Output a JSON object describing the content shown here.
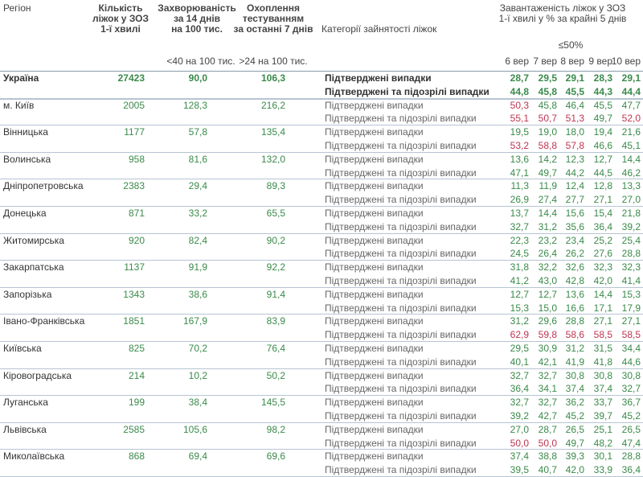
{
  "header": {
    "region": "Регіон",
    "beds": "Кількість\nліжок у ЗОЗ\n1-ї хвилі",
    "incidence": "Захворюваність\nза 14 днів\nна 100 тис.",
    "testing": "Охоплення\nтестуванням\nза останні 7 днів",
    "category": "Категорії зайнятості ліжок",
    "occupancy": "Завантаженість ліжок у ЗОЗ\n1-ї хвилі у % за крайні 5 днів",
    "incidence_threshold": "<40 на 100 тис.",
    "testing_threshold": ">24 на 100 тис.",
    "occupancy_threshold": "≤50%",
    "days": [
      "6 вер",
      "7 вер",
      "8 вер",
      "9 вер",
      "10 вер"
    ]
  },
  "rows": [
    {
      "region": "Україна",
      "beds": "27423",
      "incidence": "90,0",
      "testing": "106,3",
      "categories": [
        "Підтверджені випадки",
        "Підтверджені та підозрілі випадки"
      ],
      "occupancy": [
        [
          "28,7",
          "29,5",
          "29,1",
          "28,3",
          "29,1"
        ],
        [
          "44,8",
          "45,8",
          "45,5",
          "44,3",
          "44,4"
        ]
      ]
    },
    {
      "region": "м. Київ",
      "beds": "2005",
      "incidence": "128,3",
      "testing": "216,2",
      "categories": [
        "Підтверджені випадки",
        "Підтверджені та підозрілі випадки"
      ],
      "occupancy": [
        [
          "50,3",
          "45,8",
          "46,4",
          "45,5",
          "47,7"
        ],
        [
          "55,1",
          "50,7",
          "51,3",
          "49,7",
          "52,0"
        ]
      ]
    },
    {
      "region": "Вінницька",
      "beds": "1177",
      "incidence": "57,8",
      "testing": "135,4",
      "categories": [
        "Підтверджені випадки",
        "Підтверджені та підозрілі випадки"
      ],
      "occupancy": [
        [
          "19,5",
          "19,0",
          "18,0",
          "19,4",
          "21,6"
        ],
        [
          "53,2",
          "58,8",
          "57,8",
          "46,6",
          "45,1"
        ]
      ]
    },
    {
      "region": "Волинська",
      "beds": "958",
      "incidence": "81,6",
      "testing": "132,0",
      "categories": [
        "Підтверджені випадки",
        "Підтверджені та підозрілі випадки"
      ],
      "occupancy": [
        [
          "13,6",
          "14,2",
          "12,3",
          "12,7",
          "14,4"
        ],
        [
          "47,1",
          "49,7",
          "44,2",
          "44,5",
          "46,2"
        ]
      ]
    },
    {
      "region": "Дніпропетровська",
      "beds": "2383",
      "incidence": "29,4",
      "testing": "89,3",
      "categories": [
        "Підтверджені випадки",
        "Підтверджені та підозрілі випадки"
      ],
      "occupancy": [
        [
          "11,3",
          "11,9",
          "12,4",
          "12,8",
          "13,3"
        ],
        [
          "26,9",
          "27,4",
          "27,7",
          "27,1",
          "27,0"
        ]
      ]
    },
    {
      "region": "Донецька",
      "beds": "871",
      "incidence": "33,2",
      "testing": "65,5",
      "categories": [
        "Підтверджені випадки",
        "Підтверджені та підозрілі випадки"
      ],
      "occupancy": [
        [
          "13,7",
          "14,4",
          "15,6",
          "15,4",
          "21,8"
        ],
        [
          "32,7",
          "31,2",
          "35,6",
          "36,4",
          "39,2"
        ]
      ]
    },
    {
      "region": "Житомирська",
      "beds": "920",
      "incidence": "82,4",
      "testing": "90,2",
      "categories": [
        "Підтверджені випадки",
        "Підтверджені та підозрілі випадки"
      ],
      "occupancy": [
        [
          "22,3",
          "23,2",
          "23,4",
          "25,2",
          "25,4"
        ],
        [
          "24,5",
          "26,4",
          "26,2",
          "27,6",
          "28,8"
        ]
      ]
    },
    {
      "region": "Закарпатська",
      "beds": "1137",
      "incidence": "91,9",
      "testing": "92,2",
      "categories": [
        "Підтверджені випадки",
        "Підтверджені та підозрілі випадки"
      ],
      "occupancy": [
        [
          "31,8",
          "32,2",
          "32,6",
          "32,3",
          "32,3"
        ],
        [
          "41,2",
          "43,0",
          "42,8",
          "42,0",
          "41,4"
        ]
      ]
    },
    {
      "region": "Запорізька",
      "beds": "1343",
      "incidence": "38,6",
      "testing": "91,4",
      "categories": [
        "Підтверджені випадки",
        "Підтверджені та підозрілі випадки"
      ],
      "occupancy": [
        [
          "12,7",
          "12,7",
          "13,6",
          "14,4",
          "15,3"
        ],
        [
          "15,3",
          "15,0",
          "16,6",
          "17,1",
          "17,9"
        ]
      ]
    },
    {
      "region": "Івано-Франківська",
      "beds": "1851",
      "incidence": "167,9",
      "testing": "83,9",
      "categories": [
        "Підтверджені випадки",
        "Підтверджені та підозрілі випадки"
      ],
      "occupancy": [
        [
          "31,2",
          "29,6",
          "28,8",
          "27,1",
          "27,1"
        ],
        [
          "62,9",
          "59,8",
          "58,6",
          "58,5",
          "58,5"
        ]
      ]
    },
    {
      "region": "Київська",
      "beds": "825",
      "incidence": "70,2",
      "testing": "76,4",
      "categories": [
        "Підтверджені випадки",
        "Підтверджені та підозрілі випадки"
      ],
      "occupancy": [
        [
          "29,5",
          "30,9",
          "31,2",
          "31,5",
          "34,4"
        ],
        [
          "40,1",
          "42,1",
          "41,9",
          "41,8",
          "44,6"
        ]
      ]
    },
    {
      "region": "Кіровоградська",
      "beds": "214",
      "incidence": "10,2",
      "testing": "50,2",
      "categories": [
        "Підтверджені випадки",
        "Підтверджені та підозрілі випадки"
      ],
      "occupancy": [
        [
          "32,7",
          "32,7",
          "30,8",
          "30,8",
          "30,8"
        ],
        [
          "36,4",
          "34,1",
          "37,4",
          "37,4",
          "32,7"
        ]
      ]
    },
    {
      "region": "Луганська",
      "beds": "199",
      "incidence": "38,4",
      "testing": "145,5",
      "categories": [
        "Підтверджені випадки",
        "Підтверджені та підозрілі випадки"
      ],
      "occupancy": [
        [
          "32,7",
          "32,7",
          "36,2",
          "33,7",
          "36,7"
        ],
        [
          "39,2",
          "42,7",
          "45,2",
          "39,7",
          "45,2"
        ]
      ]
    },
    {
      "region": "Львівська",
      "beds": "2585",
      "incidence": "105,6",
      "testing": "98,2",
      "categories": [
        "Підтверджені випадки",
        "Підтверджені та підозрілі випадки"
      ],
      "occupancy": [
        [
          "27,0",
          "28,7",
          "26,5",
          "25,1",
          "26,5"
        ],
        [
          "50,0",
          "50,0",
          "49,7",
          "48,2",
          "47,4"
        ]
      ]
    },
    {
      "region": "Миколаївська",
      "beds": "868",
      "incidence": "69,4",
      "testing": "69,6",
      "categories": [
        "Підтверджені випадки",
        "Підтверджені та підозрілі випадки"
      ],
      "occupancy": [
        [
          "37,4",
          "38,8",
          "39,3",
          "30,1",
          "28,8"
        ],
        [
          "39,5",
          "40,7",
          "42,0",
          "33,9",
          "36,4"
        ]
      ]
    }
  ]
}
